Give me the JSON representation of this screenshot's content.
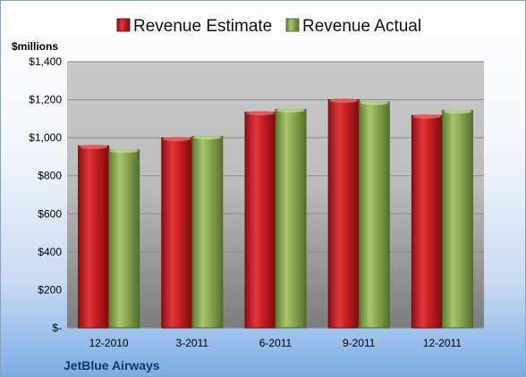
{
  "chart_data": {
    "type": "bar",
    "unit_label": "$millions",
    "company": "JetBlue Airways",
    "categories": [
      "12-2010",
      "3-2011",
      "6-2011",
      "9-2011",
      "12-2011"
    ],
    "series": [
      {
        "name": "Revenue Estimate",
        "color": "#c0181c",
        "values": [
          957,
          998,
          1134,
          1200,
          1117
        ]
      },
      {
        "name": "Revenue Actual",
        "color": "#8bab4f",
        "values": [
          936,
          1007,
          1149,
          1188,
          1143
        ]
      }
    ],
    "y_ticks": [
      {
        "value": 0,
        "label": "$-"
      },
      {
        "value": 200,
        "label": "$200"
      },
      {
        "value": 400,
        "label": "$400"
      },
      {
        "value": 600,
        "label": "$600"
      },
      {
        "value": 800,
        "label": "$800"
      },
      {
        "value": 1000,
        "label": "$1,000"
      },
      {
        "value": 1200,
        "label": "$1,200"
      },
      {
        "value": 1400,
        "label": "$1,400"
      }
    ],
    "ylim": [
      0,
      1400
    ],
    "grid": true,
    "legend_position": "top"
  }
}
